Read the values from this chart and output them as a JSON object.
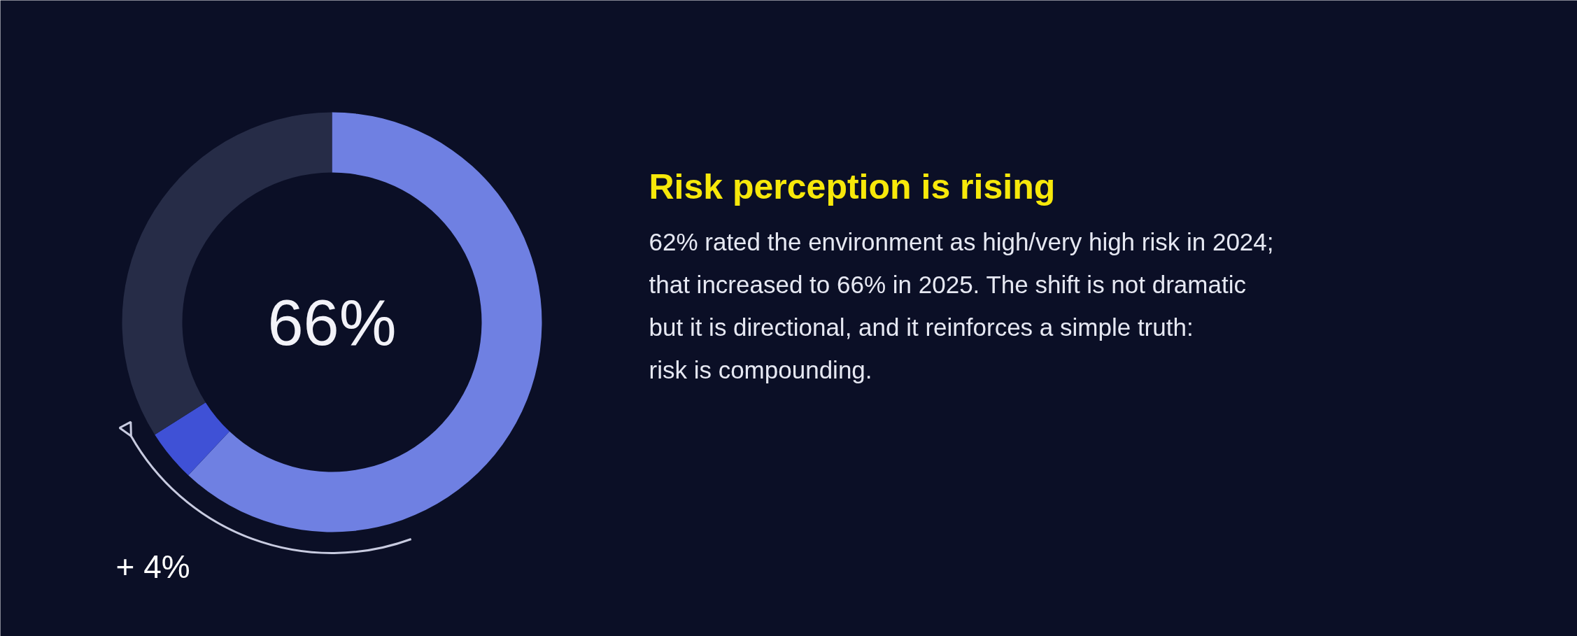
{
  "chart_data": {
    "type": "donut",
    "title": "Risk perception is rising",
    "categories": [
      null,
      null,
      null
    ],
    "values": [
      62,
      4,
      34
    ],
    "colors": [
      "#6f80e2",
      "#3f51d6",
      "#262c47"
    ],
    "annotations": [
      "66%",
      "+ 4%",
      "62% rated the environment as high/very high risk in 2024; that increased to 66% in 2025. The shift is not dramatic but it is directional, and it reinforces a simple truth: risk is compounding."
    ]
  }
}
